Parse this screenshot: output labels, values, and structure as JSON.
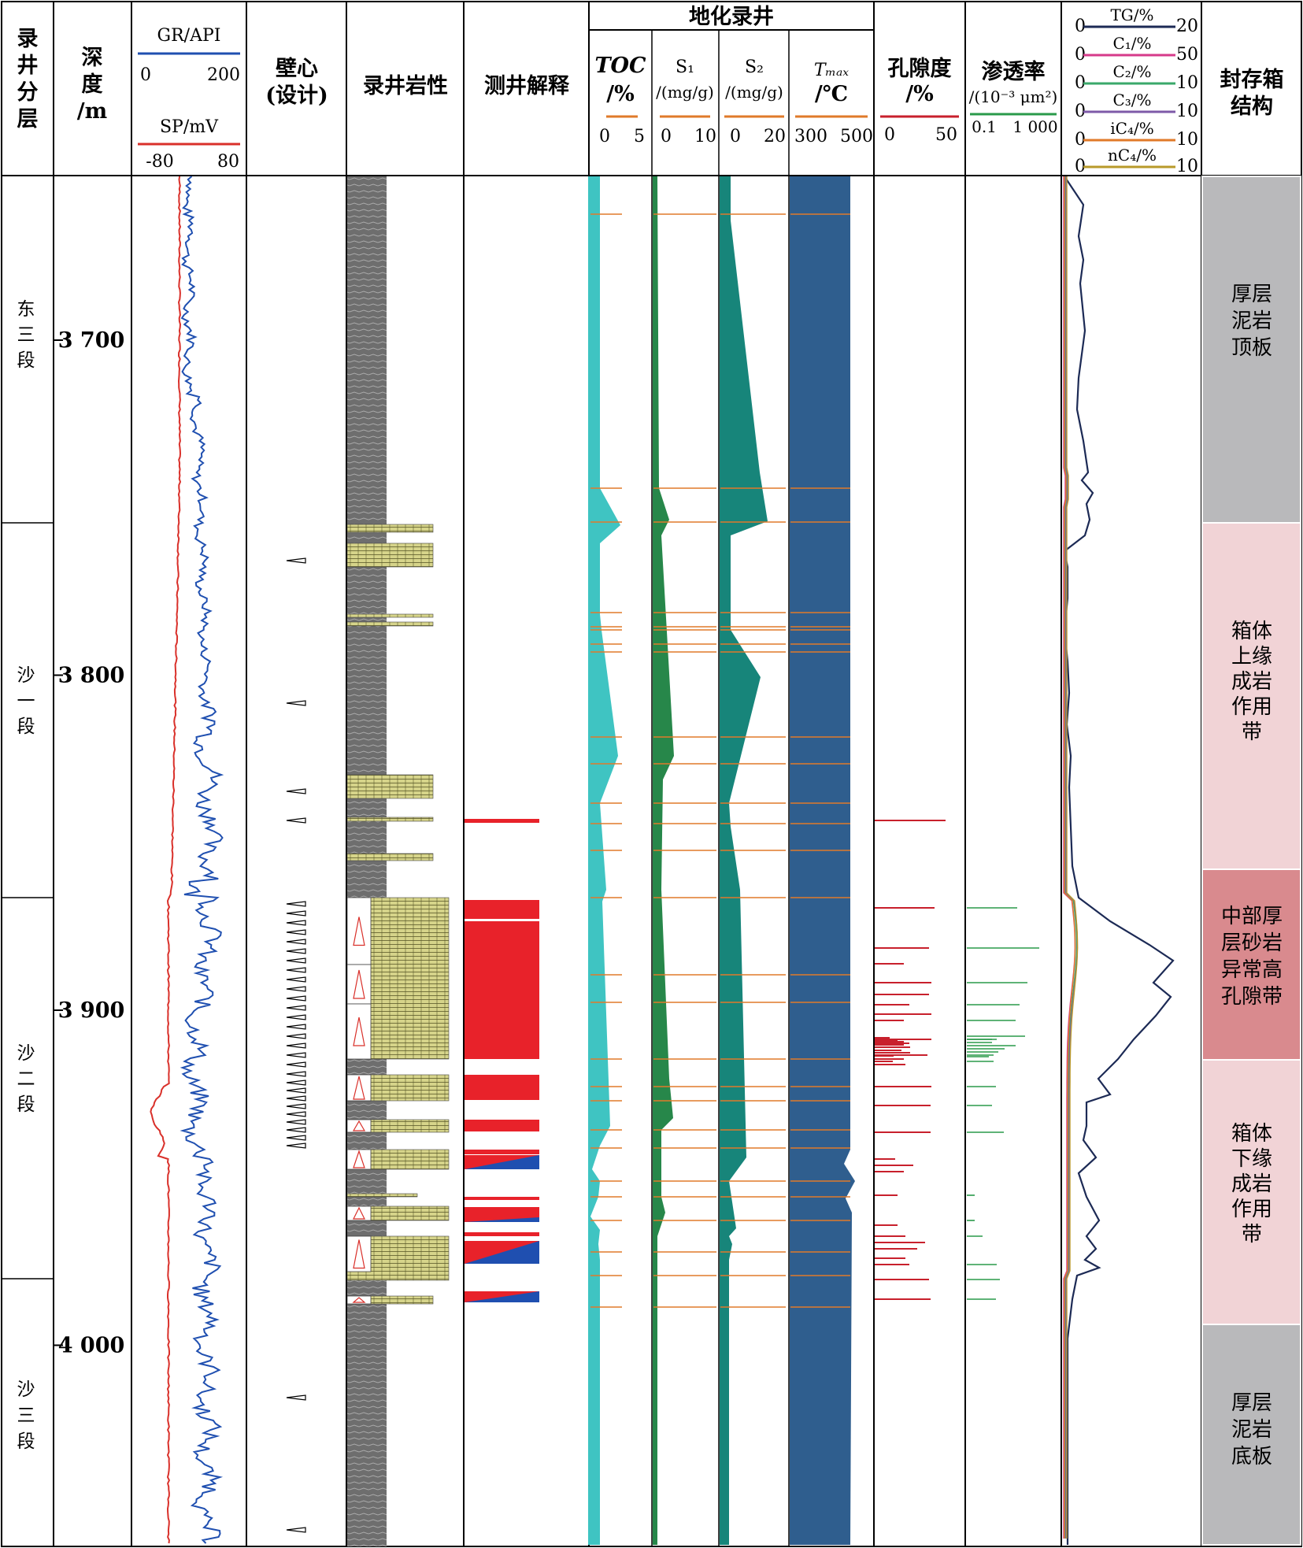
{
  "headers": {
    "formation": [
      "录",
      "井",
      "分",
      "层"
    ],
    "depth": [
      "深",
      "度",
      "/m"
    ],
    "gr_label": "GR/API",
    "gr_min": "0",
    "gr_max": "200",
    "sp_label": "SP/mV",
    "sp_min": "-80",
    "sp_max": "80",
    "core": [
      "壁心",
      "(设计)"
    ],
    "lithology": "录井岩性",
    "interpretation": "测井解释",
    "geochem": "地化录井",
    "toc": [
      "TOC",
      "/%"
    ],
    "toc_min": "0",
    "toc_max": "5",
    "s1": [
      "S₁",
      "/(mg/g)"
    ],
    "s1_min": "0",
    "s1_max": "10",
    "s2": [
      "S₂",
      "/(mg/g)"
    ],
    "s2_min": "0",
    "s2_max": "20",
    "tmax": [
      "Tₘₐₓ",
      "/℃"
    ],
    "tmax_min": "300",
    "tmax_max": "500",
    "porosity": [
      "孔隙度",
      "/%"
    ],
    "por_min": "0",
    "por_max": "50",
    "perm": [
      "渗透率",
      "/(10⁻³ μm²)"
    ],
    "perm_min": "0.1",
    "perm_max": "1 000",
    "gas": [
      {
        "label": "TG/%",
        "min": "0",
        "max": "20",
        "color": "#1c2a55"
      },
      {
        "label": "C₁/%",
        "min": "0",
        "max": "50",
        "color": "#d63a8a"
      },
      {
        "label": "C₂/%",
        "min": "0",
        "max": "10",
        "color": "#3aa86a"
      },
      {
        "label": "C₃/%",
        "min": "0",
        "max": "10",
        "color": "#7e5aa8"
      },
      {
        "label": "iC₄/%",
        "min": "0",
        "max": "10",
        "color": "#e07a2a"
      },
      {
        "label": "nC₄/%",
        "min": "0",
        "max": "10",
        "color": "#b89a2a"
      }
    ],
    "seal": [
      "封存箱",
      "结构"
    ]
  },
  "formations": [
    {
      "chars": [
        "东",
        "三",
        "段"
      ]
    },
    {
      "chars": [
        "沙",
        "一",
        "段"
      ]
    },
    {
      "chars": [
        "沙",
        "二",
        "段"
      ]
    },
    {
      "chars": [
        "沙",
        "三",
        "段"
      ]
    }
  ],
  "depth_ticks": [
    "3 700",
    "3 800",
    "3 900",
    "4 000"
  ],
  "zones": [
    {
      "lines": [
        "厚层",
        "泥岩",
        "顶板"
      ],
      "color": "#b9b9bb"
    },
    {
      "lines": [
        "箱体",
        "上缘",
        "成岩",
        "作用",
        "带"
      ],
      "color": "#f1d3d6"
    },
    {
      "lines": [
        "中部厚",
        "层砂岩",
        "异常高",
        "孔隙带"
      ],
      "color": "#d98a8e"
    },
    {
      "lines": [
        "箱体",
        "下缘",
        "成岩",
        "作用",
        "带"
      ],
      "color": "#f1d3d6"
    },
    {
      "lines": [
        "厚层",
        "泥岩",
        "底板"
      ],
      "color": "#b9b9bb"
    }
  ],
  "colors": {
    "gr": "#1f4fb0",
    "sp": "#d9302a",
    "toc": "#3fc4c2",
    "s1": "#27874a",
    "s2": "#17857a",
    "tmax": "#2f5e8e",
    "sand": "#d6d48a",
    "shale": "#7a7a7a",
    "red": "#e8222a",
    "blue": "#1f4fb0",
    "orange": "#e07a2a",
    "por": "#c8202c",
    "perm": "#2a9a4a"
  }
}
